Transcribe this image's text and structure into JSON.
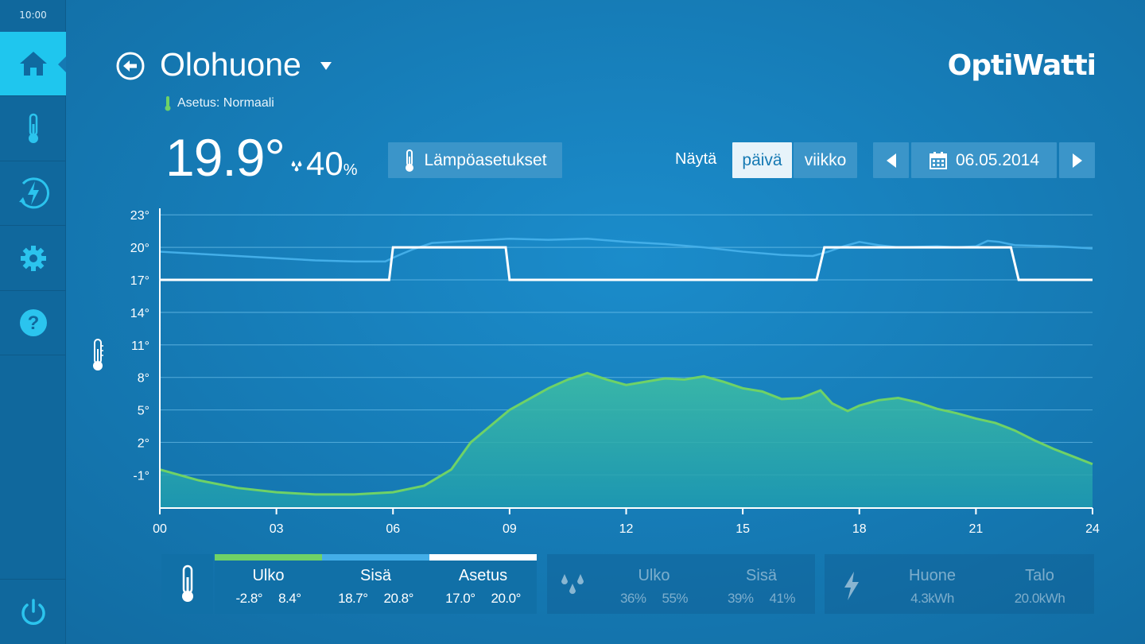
{
  "status": {
    "time": "10:00"
  },
  "sidebar": {
    "items": [
      {
        "icon": "home-icon",
        "active": true
      },
      {
        "icon": "thermometer-icon",
        "active": false
      },
      {
        "icon": "energy-icon",
        "active": false
      },
      {
        "icon": "gear-icon",
        "active": false
      },
      {
        "icon": "help-icon",
        "active": false
      }
    ],
    "power_icon": "power-icon"
  },
  "header": {
    "room": "Olohuone",
    "setting_label": "Asetus: Normaali",
    "brand": "OptiWatti",
    "temperature": "19.9°",
    "humidity": "40",
    "humidity_unit": "%"
  },
  "toolbar": {
    "settings_button": "Lämpöasetukset",
    "show_label": "Näytä",
    "day_button": "päivä",
    "week_button": "viikko",
    "date": "06.05.2014",
    "selected_view": "päivä"
  },
  "colors": {
    "outdoor": "#6fd266",
    "indoor": "#43aee8",
    "setpoint": "#ffffff",
    "active_nav": "#1fc6ee"
  },
  "chart_data": {
    "type": "line",
    "x_ticks": [
      "00",
      "03",
      "06",
      "09",
      "12",
      "15",
      "18",
      "21",
      "24"
    ],
    "y_ticks": [
      "23°",
      "20°",
      "17°",
      "14°",
      "11°",
      "8°",
      "5°",
      "2°",
      "-1°"
    ],
    "xlim": [
      0,
      24
    ],
    "ylim": [
      -4,
      23
    ],
    "grid": true,
    "series": [
      {
        "name": "Sisä",
        "color": "#43aee8",
        "x": [
          0,
          1,
          2,
          3,
          4,
          5,
          5.8,
          6.1,
          6.5,
          7,
          8,
          9,
          10,
          11,
          12,
          13,
          14,
          15,
          16,
          16.8,
          17.2,
          17.6,
          18,
          18.5,
          19,
          20,
          20.5,
          21,
          21.3,
          21.6,
          22,
          23,
          24
        ],
        "y": [
          19.6,
          19.4,
          19.2,
          19.0,
          18.8,
          18.7,
          18.7,
          19.2,
          19.8,
          20.4,
          20.6,
          20.8,
          20.7,
          20.8,
          20.5,
          20.3,
          20.0,
          19.6,
          19.3,
          19.2,
          19.6,
          20.1,
          20.5,
          20.2,
          20.0,
          20.1,
          20.0,
          20.1,
          20.6,
          20.5,
          20.2,
          20.1,
          19.9
        ]
      },
      {
        "name": "Asetus",
        "color": "#ffffff",
        "x": [
          0,
          5.9,
          6.0,
          8.9,
          9.0,
          16.9,
          17.1,
          21.9,
          22.1,
          24
        ],
        "y": [
          17,
          17,
          20,
          20,
          17,
          17,
          20,
          20,
          17,
          17
        ]
      },
      {
        "name": "Ulko",
        "color": "#6fd266",
        "x": [
          0,
          1,
          2,
          3,
          4,
          5,
          6,
          6.8,
          7.5,
          8,
          8.5,
          9,
          9.5,
          10,
          10.5,
          11,
          11.5,
          12,
          12.5,
          13,
          13.5,
          14,
          14.5,
          15,
          15.5,
          16,
          16.5,
          17,
          17.3,
          17.7,
          18,
          18.5,
          19,
          19.5,
          20,
          20.5,
          21,
          21.5,
          22,
          22.5,
          23,
          23.5,
          24
        ],
        "y": [
          -0.5,
          -1.5,
          -2.2,
          -2.6,
          -2.8,
          -2.8,
          -2.6,
          -2.0,
          -0.5,
          2.0,
          3.5,
          5.0,
          6.0,
          7.0,
          7.8,
          8.4,
          7.8,
          7.3,
          7.6,
          7.9,
          7.8,
          8.1,
          7.6,
          7.0,
          6.7,
          6.0,
          6.1,
          6.8,
          5.6,
          4.9,
          5.4,
          5.9,
          6.1,
          5.7,
          5.1,
          4.7,
          4.2,
          3.8,
          3.1,
          2.2,
          1.4,
          0.7,
          0.0
        ]
      }
    ]
  },
  "legend": {
    "temperature": [
      {
        "title": "Ulko",
        "min": "-2.8°",
        "max": "8.4°",
        "color": "#6fd266"
      },
      {
        "title": "Sisä",
        "min": "18.7°",
        "max": "20.8°",
        "color": "#43aee8"
      },
      {
        "title": "Asetus",
        "min": "17.0°",
        "max": "20.0°",
        "color": "#ffffff"
      }
    ],
    "humidity": [
      {
        "title": "Ulko",
        "min": "36%",
        "max": "55%"
      },
      {
        "title": "Sisä",
        "min": "39%",
        "max": "41%"
      }
    ],
    "energy": [
      {
        "title": "Huone",
        "value": "4.3kWh"
      },
      {
        "title": "Talo",
        "value": "20.0kWh"
      }
    ]
  }
}
